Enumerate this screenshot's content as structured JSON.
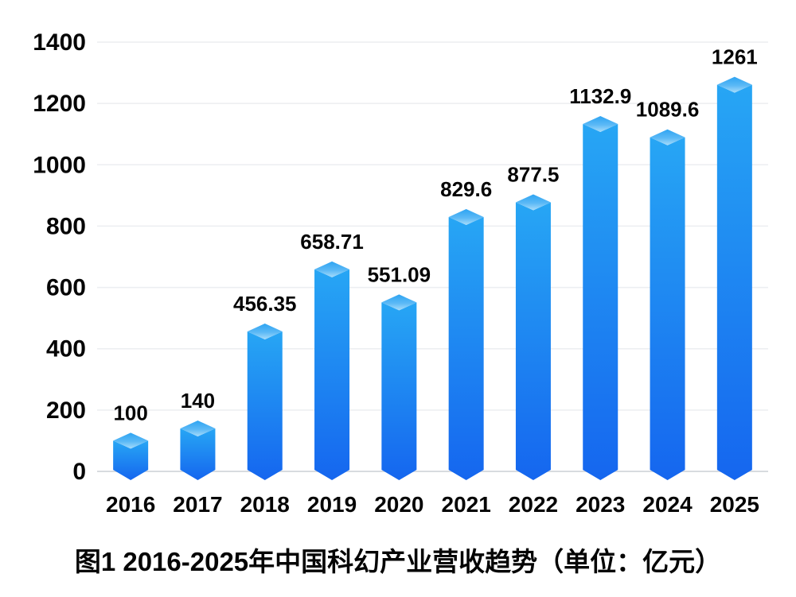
{
  "chart_data": {
    "type": "bar",
    "title": "图1 2016-2025年中国科幻产业营收趋势（单位：亿元）",
    "unit_label": "亿元",
    "categories": [
      "2016",
      "2017",
      "2018",
      "2019",
      "2020",
      "2021",
      "2022",
      "2023",
      "2024",
      "2025"
    ],
    "values": [
      100,
      140,
      456.35,
      658.71,
      551.09,
      829.6,
      877.5,
      1132.9,
      1089.6,
      1261
    ],
    "value_labels": [
      "100",
      "140",
      "456.35",
      "658.71",
      "551.09",
      "829.6",
      "877.5",
      "1132.9",
      "1089.6",
      "1261"
    ],
    "xlabel": "",
    "ylabel": "",
    "ylim": [
      0,
      1400
    ],
    "yticks": [
      0,
      200,
      400,
      600,
      800,
      1000,
      1200,
      1400
    ],
    "grid": true,
    "legend": "none",
    "bar_style": "3d-pictorial",
    "colors": {
      "bar_body_top": "#27A6F4",
      "bar_body_bottom": "#1566EF",
      "bar_face_dark": "#2EA4F2",
      "bar_face_mid": "#5BB9F6",
      "bar_face_light": "#A7DCFA",
      "gridline": "#ECEEF1",
      "axis_line": "#D8DBDF",
      "text": "#050505"
    }
  }
}
